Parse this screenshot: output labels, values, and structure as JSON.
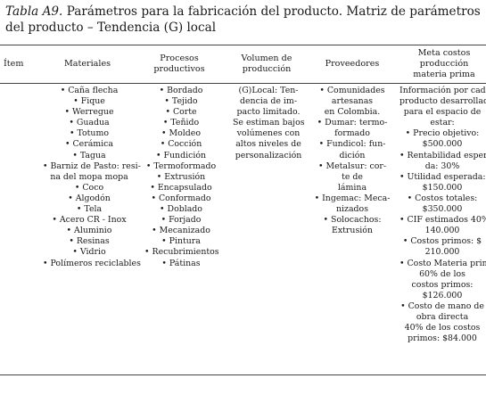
{
  "caption": {
    "label": "Tabla A9.",
    "line1": " Parámetros para la fabricación del producto. Matriz de parámetros para la fabricación",
    "line2": "del producto – Tendencia (G) local"
  },
  "headers": {
    "item": "Ítem",
    "materiales": "Materiales",
    "procesos": "Procesos productivos",
    "volumen": "Volumen de producción",
    "proveedores": "Proveedores",
    "meta": "Meta costos producción materia prima"
  },
  "materiales": [
    "• Caña flecha",
    "• Fique",
    "• Werregue",
    "• Guadua",
    "• Totumo",
    "• Cerámica",
    "• Tagua",
    "• Barniz de Pasto: resi-",
    "na del mopa mopa",
    "• Coco",
    "• Algodón",
    "• Tela",
    "• Acero CR - Inox",
    "• Aluminio",
    "• Resinas",
    "• Vidrio",
    "• Polímeros reciclables"
  ],
  "procesos": [
    "• Bordado",
    "• Tejido",
    "• Corte",
    "• Teñido",
    "• Moldeo",
    "• Cocción",
    "• Fundición",
    "• Termoformado",
    "• Extrusión",
    "• Encapsulado",
    "• Conformado",
    "• Doblado",
    "• Forjado",
    "• Mecanizado",
    "• Pintura",
    "• Recubrimientos",
    "• Pátinas"
  ],
  "volumen": [
    "(G)Local: Ten-",
    "dencia de im-",
    "pacto limitado.",
    "Se estiman bajos",
    "volúmenes con",
    "altos niveles de",
    "personalización"
  ],
  "proveedores": [
    "• Comunidades",
    "artesanas",
    "en Colombia.",
    "• Dumar: termo-",
    "formado",
    "• Fundicol: fun-",
    "dición",
    "• Metalsur: cor-",
    "te de",
    "lámina",
    "• Ingemac: Meca-",
    "nizados",
    "• Solocachos:",
    "Extrusión"
  ],
  "meta": [
    "Información por cada",
    "producto desarrollado",
    "para el espacio de",
    "estar:",
    "• Precio objetivo:",
    "$500.000",
    "• Rentabilidad espera-",
    "da: 30%",
    "• Utilidad esperada:",
    "$150.000",
    "• Costos totales:",
    "$350.000",
    "• CIF estimados 40%:",
    "140.000",
    "• Costos primos: $",
    "210.000",
    "• Costo Materia prima",
    "60% de los",
    "costos primos:",
    "$126.000",
    "• Costo de mano de",
    "obra directa",
    "40% de los costos",
    "primos: $84.000"
  ]
}
